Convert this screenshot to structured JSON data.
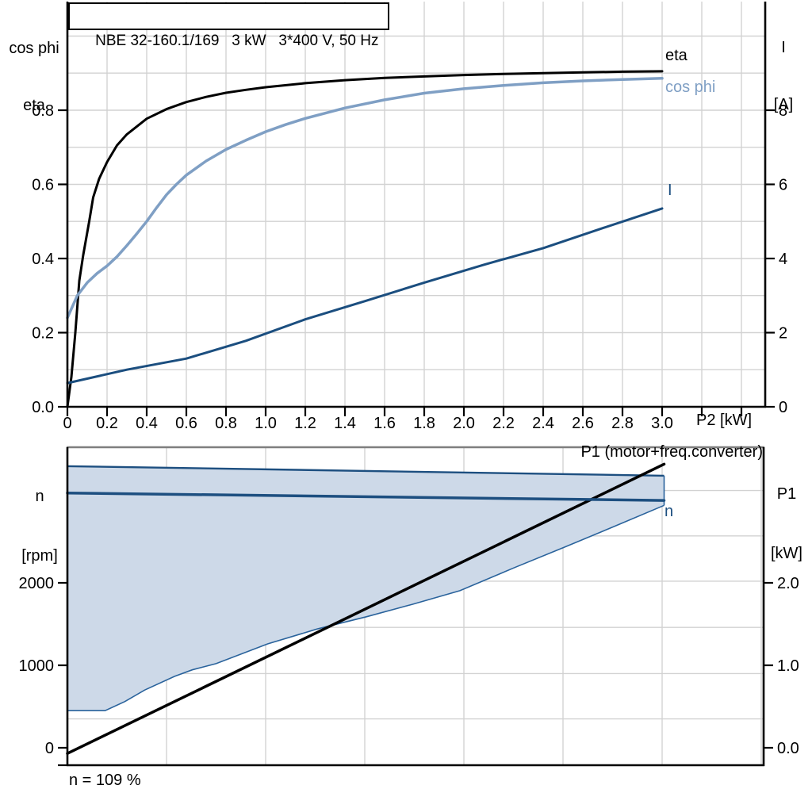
{
  "style": {
    "grid": "#d2d2d2",
    "frame_gray": "#7f7f7f",
    "axis": "#000000",
    "band_fill": "#cdd9e8",
    "navy": "#1b4e7f",
    "light_blue": "#7f9fc4"
  },
  "chart_data": [
    {
      "id": "top",
      "type": "line",
      "title": "NBE 32-160.1/169   3 kW   3*400 V, 50 Hz",
      "x_axis": {
        "label": "P2 [kW]",
        "min": 0,
        "max": 3.52,
        "ticks": [
          {
            "v": 0,
            "t": "0"
          },
          {
            "v": 0.2,
            "t": "0.2"
          },
          {
            "v": 0.4,
            "t": "0.4"
          },
          {
            "v": 0.6,
            "t": "0.6"
          },
          {
            "v": 0.8,
            "t": "0.8"
          },
          {
            "v": 1.0,
            "t": "1.0"
          },
          {
            "v": 1.2,
            "t": "1.2"
          },
          {
            "v": 1.4,
            "t": "1.4"
          },
          {
            "v": 1.6,
            "t": "1.6"
          },
          {
            "v": 1.8,
            "t": "1.8"
          },
          {
            "v": 2.0,
            "t": "2.0"
          },
          {
            "v": 2.2,
            "t": "2.2"
          },
          {
            "v": 2.4,
            "t": "2.4"
          },
          {
            "v": 2.6,
            "t": "2.6"
          },
          {
            "v": 2.8,
            "t": "2.8"
          },
          {
            "v": 3.0,
            "t": "3.0"
          }
        ],
        "minor_ticks": [
          3.2,
          3.4
        ],
        "grid": [
          0.2,
          0.4,
          0.6,
          0.8,
          1.0,
          1.2,
          1.4,
          1.6,
          1.8,
          2.0,
          2.2,
          2.4,
          2.6,
          2.8,
          3.0,
          3.2,
          3.4
        ]
      },
      "y_left": {
        "label": [
          "cos phi",
          "eta"
        ],
        "min": 0,
        "max": 1.093,
        "ticks": [
          {
            "v": 0,
            "t": "0.0"
          },
          {
            "v": 0.2,
            "t": "0.2"
          },
          {
            "v": 0.4,
            "t": "0.4"
          },
          {
            "v": 0.6,
            "t": "0.6"
          },
          {
            "v": 0.8,
            "t": "0.8"
          }
        ],
        "grid": [
          0.1,
          0.2,
          0.3,
          0.4,
          0.5,
          0.6,
          0.7,
          0.8,
          0.9,
          1.0
        ]
      },
      "y_right": {
        "label": [
          "I",
          "[A]"
        ],
        "min": 0,
        "max": 10.93,
        "ticks": [
          {
            "v": 0,
            "t": "0"
          },
          {
            "v": 2,
            "t": "2"
          },
          {
            "v": 4,
            "t": "4"
          },
          {
            "v": 6,
            "t": "6"
          },
          {
            "v": 8,
            "t": "8"
          }
        ]
      },
      "series": [
        {
          "name": "eta",
          "label": "eta",
          "axis": "left",
          "color": "#000000",
          "width": 3,
          "points": [
            [
              0,
              0
            ],
            [
              0.02,
              0.08
            ],
            [
              0.04,
              0.2
            ],
            [
              0.06,
              0.34
            ],
            [
              0.08,
              0.41
            ],
            [
              0.11,
              0.5
            ],
            [
              0.13,
              0.565
            ],
            [
              0.16,
              0.615
            ],
            [
              0.2,
              0.66
            ],
            [
              0.25,
              0.705
            ],
            [
              0.3,
              0.735
            ],
            [
              0.4,
              0.777
            ],
            [
              0.5,
              0.803
            ],
            [
              0.6,
              0.822
            ],
            [
              0.7,
              0.836
            ],
            [
              0.8,
              0.847
            ],
            [
              0.9,
              0.855
            ],
            [
              1.0,
              0.862
            ],
            [
              1.2,
              0.873
            ],
            [
              1.4,
              0.881
            ],
            [
              1.6,
              0.887
            ],
            [
              1.8,
              0.891
            ],
            [
              2.0,
              0.895
            ],
            [
              2.2,
              0.898
            ],
            [
              2.4,
              0.9
            ],
            [
              2.6,
              0.902
            ],
            [
              2.8,
              0.904
            ],
            [
              3.0,
              0.905
            ]
          ]
        },
        {
          "name": "cos-phi",
          "label": "cos phi",
          "axis": "left",
          "color": "#7f9fc4",
          "width": 3.5,
          "points": [
            [
              0,
              0.24
            ],
            [
              0.05,
              0.3
            ],
            [
              0.1,
              0.335
            ],
            [
              0.15,
              0.36
            ],
            [
              0.2,
              0.38
            ],
            [
              0.25,
              0.405
            ],
            [
              0.3,
              0.435
            ],
            [
              0.35,
              0.467
            ],
            [
              0.4,
              0.5
            ],
            [
              0.45,
              0.537
            ],
            [
              0.5,
              0.572
            ],
            [
              0.55,
              0.6
            ],
            [
              0.6,
              0.625
            ],
            [
              0.7,
              0.663
            ],
            [
              0.8,
              0.694
            ],
            [
              0.9,
              0.719
            ],
            [
              1.0,
              0.742
            ],
            [
              1.1,
              0.761
            ],
            [
              1.2,
              0.778
            ],
            [
              1.4,
              0.806
            ],
            [
              1.6,
              0.828
            ],
            [
              1.8,
              0.846
            ],
            [
              2.0,
              0.858
            ],
            [
              2.2,
              0.867
            ],
            [
              2.4,
              0.874
            ],
            [
              2.6,
              0.879
            ],
            [
              2.8,
              0.883
            ],
            [
              3.0,
              0.886
            ]
          ]
        },
        {
          "name": "current",
          "label": "I",
          "axis": "right",
          "color": "#1b4e7f",
          "width": 3,
          "points": [
            [
              0,
              0.64
            ],
            [
              0.3,
              1.0
            ],
            [
              0.6,
              1.3
            ],
            [
              0.9,
              1.78
            ],
            [
              1.2,
              2.36
            ],
            [
              1.5,
              2.85
            ],
            [
              1.8,
              3.35
            ],
            [
              2.1,
              3.83
            ],
            [
              2.4,
              4.28
            ],
            [
              2.7,
              4.82
            ],
            [
              3.0,
              5.35
            ]
          ]
        }
      ]
    },
    {
      "id": "bottom",
      "type": "line",
      "x_axis": {
        "label": "",
        "min": 0,
        "max": 3.512,
        "ticks": [],
        "minor_ticks": [],
        "grid": [
          0.5,
          1.0,
          1.5,
          2.0,
          2.5,
          3.0,
          3.5
        ]
      },
      "y_left": {
        "label": [
          "n",
          "[rpm]"
        ],
        "min": -212,
        "max": 3645,
        "ticks": [
          {
            "v": 0,
            "t": "0"
          },
          {
            "v": 1000,
            "t": "1000"
          },
          {
            "v": 2000,
            "t": "2000"
          }
        ],
        "grid": []
      },
      "y_right": {
        "label": [
          "P1",
          "[kW]"
        ],
        "min": -0.212,
        "max": 3.645,
        "ticks": [
          {
            "v": 0,
            "t": "0.0"
          },
          {
            "v": 1,
            "t": "1.0"
          },
          {
            "v": 2,
            "t": "2.0"
          }
        ],
        "grid": [
          0.35,
          0.9,
          1.46,
          2.02,
          2.57,
          3.12
        ]
      },
      "band": {
        "fill": "#cdd9e8",
        "edge_color": "#1d4f80",
        "bottom_edge_color": "#2a639c",
        "top": [
          [
            0,
            3415
          ],
          [
            3.01,
            3300
          ]
        ],
        "bottom": [
          [
            0,
            450
          ],
          [
            0.19,
            450
          ],
          [
            0.29,
            560
          ],
          [
            0.39,
            700
          ],
          [
            0.54,
            865
          ],
          [
            0.63,
            945
          ],
          [
            0.75,
            1020
          ],
          [
            1.01,
            1260
          ],
          [
            1.26,
            1440
          ],
          [
            1.51,
            1590
          ],
          [
            1.74,
            1740
          ],
          [
            1.98,
            1905
          ],
          [
            2.26,
            2190
          ],
          [
            2.51,
            2435
          ],
          [
            2.75,
            2675
          ],
          [
            3.01,
            2940
          ]
        ]
      },
      "series": [
        {
          "name": "p1-input-power",
          "label": "P1 (motor+freq.converter)",
          "axis": "right",
          "color": "#000000",
          "width": 3.5,
          "points": [
            [
              0,
              -0.07
            ],
            [
              3.01,
              3.44
            ]
          ]
        },
        {
          "name": "speed",
          "label": "n",
          "axis": "left",
          "color": "#1d4f80",
          "width": 3.5,
          "points": [
            [
              0,
              3090
            ],
            [
              3.01,
              3000
            ]
          ]
        }
      ],
      "footnote": "n = 109 %"
    }
  ]
}
